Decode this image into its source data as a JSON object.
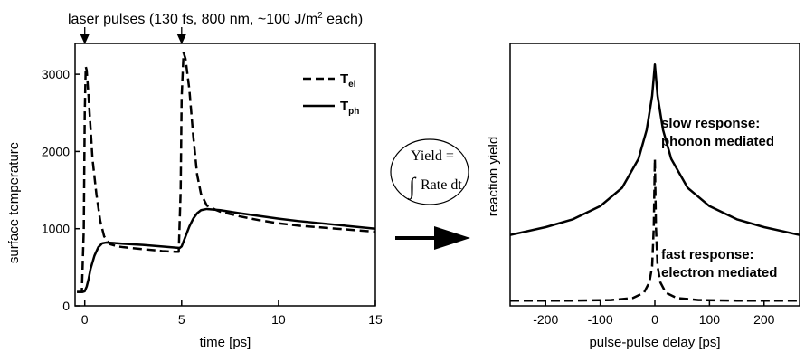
{
  "header": {
    "laser_label": "laser pulses (130 fs, 800 nm, ~100 J/m",
    "laser_label_sup": "2",
    "laser_label_tail": " each)"
  },
  "middle": {
    "formula_line1": "Yield =",
    "formula_line2": "Rate dt"
  },
  "chart_data": [
    {
      "type": "line",
      "title": "",
      "xlabel": "time [ps]",
      "ylabel": "surface temperature",
      "xlim": [
        -0.5,
        15
      ],
      "ylim": [
        0,
        3400
      ],
      "xticks": [
        0,
        5,
        10,
        15
      ],
      "yticks": [
        0,
        1000,
        2000,
        3000
      ],
      "xtick_labels": [
        "0",
        "5",
        "10",
        "15"
      ],
      "ytick_labels": [
        "0",
        "1000",
        "2000",
        "3000"
      ],
      "grid": false,
      "legend": "top-right",
      "arrows_at_x": [
        0,
        5
      ],
      "series": [
        {
          "name": "T",
          "name_sub": "el",
          "style": "dashed",
          "x": [
            -0.4,
            -0.15,
            -0.05,
            0.0,
            0.05,
            0.1,
            0.2,
            0.3,
            0.4,
            0.6,
            0.8,
            1.0,
            1.3,
            1.7,
            2.0,
            3.0,
            4.0,
            4.7,
            4.85,
            4.95,
            5.0,
            5.1,
            5.2,
            5.4,
            5.6,
            5.8,
            6.0,
            6.3,
            6.8,
            7.0,
            8.0,
            9.0,
            10.0,
            11.0,
            12.0,
            13.0,
            14.0,
            15.0
          ],
          "y": [
            180,
            180,
            1000,
            2500,
            3100,
            3050,
            2700,
            2300,
            1900,
            1450,
            1100,
            900,
            800,
            770,
            760,
            735,
            710,
            700,
            700,
            1500,
            2700,
            3280,
            3200,
            2800,
            2200,
            1700,
            1450,
            1300,
            1240,
            1220,
            1160,
            1110,
            1070,
            1040,
            1020,
            1000,
            980,
            960
          ]
        },
        {
          "name": "T",
          "name_sub": "ph",
          "style": "solid",
          "x": [
            -0.4,
            -0.1,
            0.0,
            0.1,
            0.2,
            0.3,
            0.5,
            0.7,
            0.9,
            1.1,
            1.5,
            2.0,
            3.0,
            4.0,
            4.9,
            5.0,
            5.2,
            5.4,
            5.6,
            5.8,
            6.0,
            6.3,
            7.0,
            8.0,
            9.0,
            10.0,
            11.0,
            12.0,
            13.0,
            14.0,
            15.0
          ],
          "y": [
            180,
            180,
            190,
            250,
            350,
            480,
            650,
            760,
            810,
            820,
            815,
            805,
            790,
            770,
            750,
            770,
            900,
            1030,
            1130,
            1200,
            1240,
            1255,
            1240,
            1200,
            1165,
            1130,
            1100,
            1075,
            1050,
            1025,
            1000
          ]
        }
      ]
    },
    {
      "type": "line",
      "title": "",
      "xlabel": "pulse-pulse delay [ps]",
      "ylabel": "reaction yield",
      "xlim": [
        -265,
        265
      ],
      "ylim": [
        0,
        1
      ],
      "xticks": [
        -200,
        -100,
        0,
        100,
        200
      ],
      "xtick_labels": [
        "-200",
        "-100",
        "0",
        "100",
        "200"
      ],
      "grid": false,
      "series": [
        {
          "name": "",
          "style": "solid",
          "annotation": [
            "slow response:",
            "phonon mediated"
          ],
          "x": [
            -265,
            -200,
            -150,
            -100,
            -60,
            -30,
            -15,
            -5,
            0,
            5,
            15,
            30,
            60,
            100,
            150,
            200,
            265
          ],
          "y": [
            0.27,
            0.3,
            0.33,
            0.38,
            0.45,
            0.56,
            0.67,
            0.8,
            0.92,
            0.8,
            0.67,
            0.56,
            0.45,
            0.38,
            0.33,
            0.3,
            0.27
          ]
        },
        {
          "name": "",
          "style": "dashed",
          "annotation": [
            "fast response:",
            "electron mediated"
          ],
          "x": [
            -265,
            -150,
            -80,
            -40,
            -20,
            -10,
            -5,
            -2,
            0,
            2,
            5,
            10,
            20,
            40,
            80,
            150,
            265
          ],
          "y": [
            0.02,
            0.02,
            0.022,
            0.03,
            0.05,
            0.09,
            0.15,
            0.3,
            0.56,
            0.3,
            0.15,
            0.09,
            0.05,
            0.03,
            0.022,
            0.02,
            0.02
          ]
        }
      ]
    }
  ]
}
